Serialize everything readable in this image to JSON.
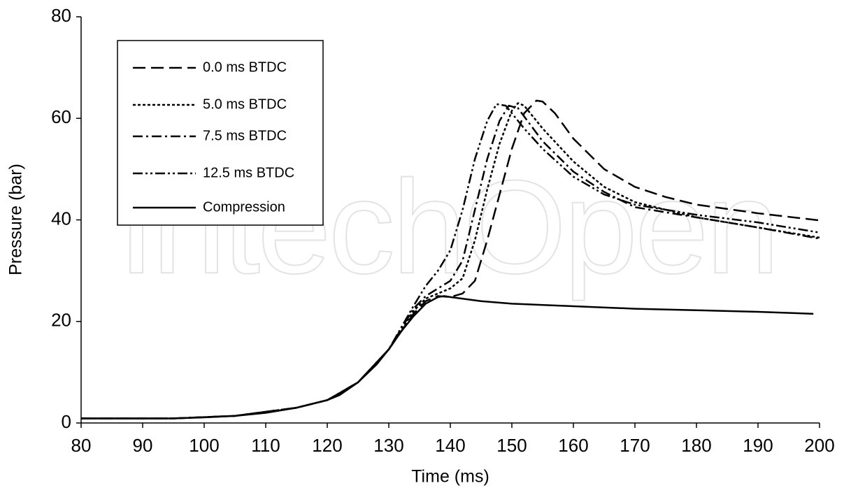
{
  "chart_data": {
    "type": "line",
    "watermark": "IntechOpen",
    "xlabel": "Time (ms)",
    "ylabel": "Pressure (bar)",
    "xlim": [
      80,
      200
    ],
    "ylim": [
      0,
      80
    ],
    "xticks": [
      80,
      90,
      100,
      110,
      120,
      130,
      140,
      150,
      160,
      170,
      180,
      190,
      200
    ],
    "yticks": [
      0,
      20,
      40,
      60,
      80
    ],
    "series": [
      {
        "name": "0.0 ms BTDC",
        "color": "#000000",
        "dash": "18,8",
        "x": [
          80,
          95,
          105,
          115,
          120,
          125,
          130,
          134,
          136,
          138,
          140,
          142,
          144,
          146,
          148,
          150,
          152,
          154,
          155,
          157,
          160,
          165,
          170,
          175,
          180,
          190,
          200
        ],
        "values": [
          0.9,
          0.9,
          1.4,
          3,
          4.5,
          8,
          14.5,
          21.5,
          24,
          25,
          24.8,
          25.5,
          28,
          36,
          45,
          54,
          61,
          63.5,
          63.3,
          61,
          56,
          50,
          46.5,
          44.5,
          43,
          41.3,
          39.9
        ]
      },
      {
        "name": "5.0 ms BTDC",
        "color": "#000000",
        "dash": "4,3",
        "x": [
          80,
          95,
          105,
          115,
          120,
          125,
          130,
          134,
          136,
          138,
          140,
          142,
          144,
          146,
          148,
          150,
          151,
          152,
          155,
          160,
          165,
          170,
          180,
          190,
          200
        ],
        "values": [
          0.9,
          0.9,
          1.4,
          3,
          4.5,
          8,
          14.5,
          22,
          24.5,
          25.5,
          26.5,
          28.5,
          36,
          46,
          55,
          61.5,
          63,
          62.5,
          58,
          51.5,
          46.5,
          43.5,
          40.5,
          38.5,
          36.5
        ]
      },
      {
        "name": "7.5 ms BTDC",
        "color": "#000000",
        "dash": "14,5,3,5",
        "x": [
          80,
          95,
          105,
          115,
          120,
          125,
          130,
          134,
          136,
          138,
          140,
          142,
          144,
          146,
          148,
          149.5,
          151,
          155,
          160,
          165,
          170,
          180,
          190,
          200
        ],
        "values": [
          0.9,
          0.9,
          1.4,
          3,
          4.5,
          8,
          14.5,
          22.5,
          25,
          26.5,
          28,
          32,
          42,
          52,
          59.5,
          62.5,
          62,
          55.5,
          49.5,
          45.5,
          42.5,
          40.5,
          38.5,
          36.3
        ]
      },
      {
        "name": "12.5 ms BTDC",
        "color": "#000000",
        "dash": "14,4,3,4,3,4",
        "x": [
          80,
          95,
          105,
          115,
          120,
          125,
          130,
          134,
          136,
          138,
          140,
          142,
          144,
          146,
          147.5,
          149,
          152,
          155,
          160,
          165,
          170,
          180,
          190,
          200
        ],
        "values": [
          0.9,
          0.9,
          1.4,
          3,
          4.5,
          8,
          14.5,
          23,
          27,
          30,
          34,
          42,
          52,
          59.5,
          62.8,
          62.5,
          58,
          54,
          48.5,
          45,
          43,
          41,
          39.5,
          37.5
        ]
      },
      {
        "name": "Compression",
        "color": "#000000",
        "dash": "none",
        "x": [
          80,
          90,
          95,
          100,
          105,
          110,
          115,
          120,
          122,
          125,
          128,
          130,
          132,
          134,
          136,
          138,
          139,
          140,
          145,
          150,
          160,
          170,
          180,
          190,
          199
        ],
        "values": [
          0.9,
          0.9,
          0.9,
          1.1,
          1.4,
          2,
          3,
          4.5,
          5.5,
          8,
          11.5,
          14.5,
          18,
          21,
          23.5,
          24.8,
          25,
          24.8,
          24,
          23.5,
          23,
          22.5,
          22.2,
          21.9,
          21.5
        ]
      }
    ]
  }
}
